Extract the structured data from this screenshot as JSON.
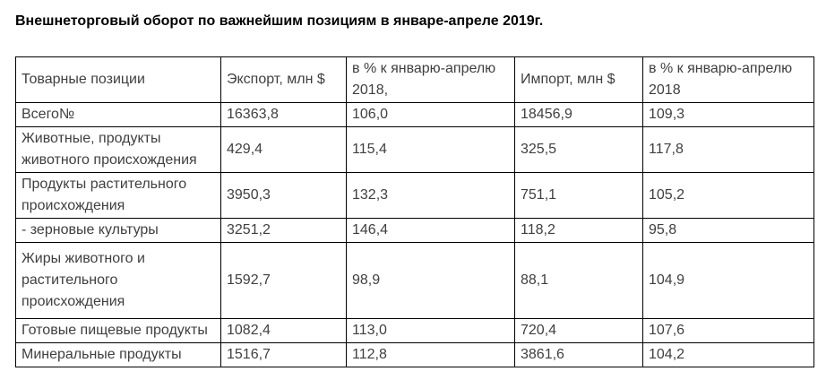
{
  "document": {
    "title": "Внешнеторговый оборот по важнейшим позициям в январе-апреле 2019г.",
    "text_color": "#3f3f3f",
    "title_color": "#000000",
    "border_color": "#000000"
  },
  "table": {
    "columns": [
      "Товарные позиции",
      "Экспорт, млн $",
      "в % к январю-апрелю 2018,",
      "Импорт, млн $",
      "в % к январю-апрелю 2018"
    ],
    "rows": [
      [
        "Всего№",
        "16363,8",
        "106,0",
        "18456,9",
        "109,3"
      ],
      [
        "Животные, продукты животного происхождения",
        "429,4",
        "115,4",
        "325,5",
        "117,8"
      ],
      [
        "Продукты растительного происхождения",
        "3950,3",
        "132,3",
        "751,1",
        "105,2"
      ],
      [
        "- зерновые культуры",
        "3251,2",
        "146,4",
        "118,2",
        "95,8"
      ],
      [
        "Жиры животного и растительного происхождения",
        "1592,7",
        "98,9",
        "88,1",
        "104,9"
      ],
      [
        "Готовые пищевые продукты",
        "1082,4",
        "113,0",
        "720,4",
        "107,6"
      ],
      [
        "Минеральные продукты",
        "1516,7",
        "112,8",
        "3861,6",
        "104,2"
      ]
    ]
  }
}
